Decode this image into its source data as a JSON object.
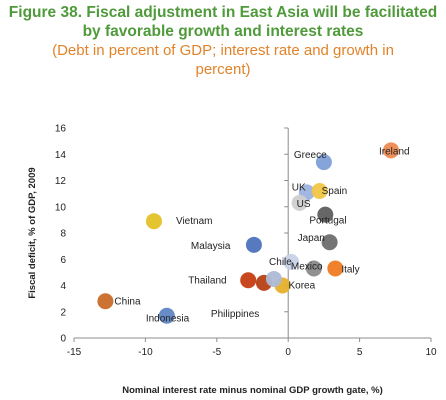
{
  "title": {
    "main_line1": "Figure 38. Fiscal adjustment in East Asia will be facilitated",
    "main_line2": "by favorable growth and interest rates",
    "sub_line1": "(Debt in percent of GDP; interest rate and growth in",
    "sub_line2": "percent)"
  },
  "chart_data": {
    "type": "scatter",
    "title": "Figure 38. Fiscal adjustment in East Asia will be facilitated by favorable growth and interest rates",
    "subtitle": "(Debt in percent of GDP; interest rate and growth in percent)",
    "xlabel": "Nominal interest rate minus nominal GDP growth gate, %)",
    "ylabel": "Fiscal deficit, % of GDP, 2009",
    "xlim": [
      -15,
      10
    ],
    "ylim": [
      0,
      16
    ],
    "xticks": [
      -15,
      -10,
      -5,
      0,
      5,
      10
    ],
    "yticks": [
      0,
      2,
      4,
      6,
      8,
      10,
      12,
      14,
      16
    ],
    "grid": false,
    "points": [
      {
        "label": "Ireland",
        "x": 7.2,
        "y": 14.3,
        "color": "#ec8a52"
      },
      {
        "label": "Greece",
        "x": 2.5,
        "y": 13.4,
        "color": "#7d9fd8"
      },
      {
        "label": "UK",
        "x": 1.3,
        "y": 11.1,
        "color": "#9cb3df"
      },
      {
        "label": "Spain",
        "x": 2.2,
        "y": 11.2,
        "color": "#f1c646"
      },
      {
        "label": "US",
        "x": 0.8,
        "y": 10.3,
        "color": "#cfcfcf"
      },
      {
        "label": "Portugal",
        "x": 2.6,
        "y": 9.4,
        "color": "#5f5f5f"
      },
      {
        "label": "Vietnam",
        "x": -9.4,
        "y": 8.9,
        "color": "#e4c126"
      },
      {
        "label": "Japan",
        "x": 2.9,
        "y": 7.3,
        "color": "#6e6e6e"
      },
      {
        "label": "Malaysia",
        "x": -2.4,
        "y": 7.1,
        "color": "#4e72bd"
      },
      {
        "label": "Chile",
        "x": 0.2,
        "y": 5.8,
        "color": "#c8d2e8"
      },
      {
        "label": "Mexico",
        "x": 1.8,
        "y": 5.3,
        "color": "#8a8a8a"
      },
      {
        "label": "Italy",
        "x": 3.3,
        "y": 5.3,
        "color": "#ef7a22"
      },
      {
        "label": "Thailand",
        "x": -2.8,
        "y": 4.4,
        "color": "#c63d12"
      },
      {
        "label": "Philippines",
        "x": -1.7,
        "y": 4.2,
        "color": "#b74014"
      },
      {
        "label": "Korea",
        "x": -0.4,
        "y": 4.0,
        "color": "#e6b02a"
      },
      {
        "label": "",
        "x": -1.0,
        "y": 4.5,
        "color": "#aebbd6"
      },
      {
        "label": "China",
        "x": -12.8,
        "y": 2.8,
        "color": "#c96a27"
      },
      {
        "label": "Indonesia",
        "x": -8.5,
        "y": 1.7,
        "color": "#5f86c5"
      }
    ]
  }
}
